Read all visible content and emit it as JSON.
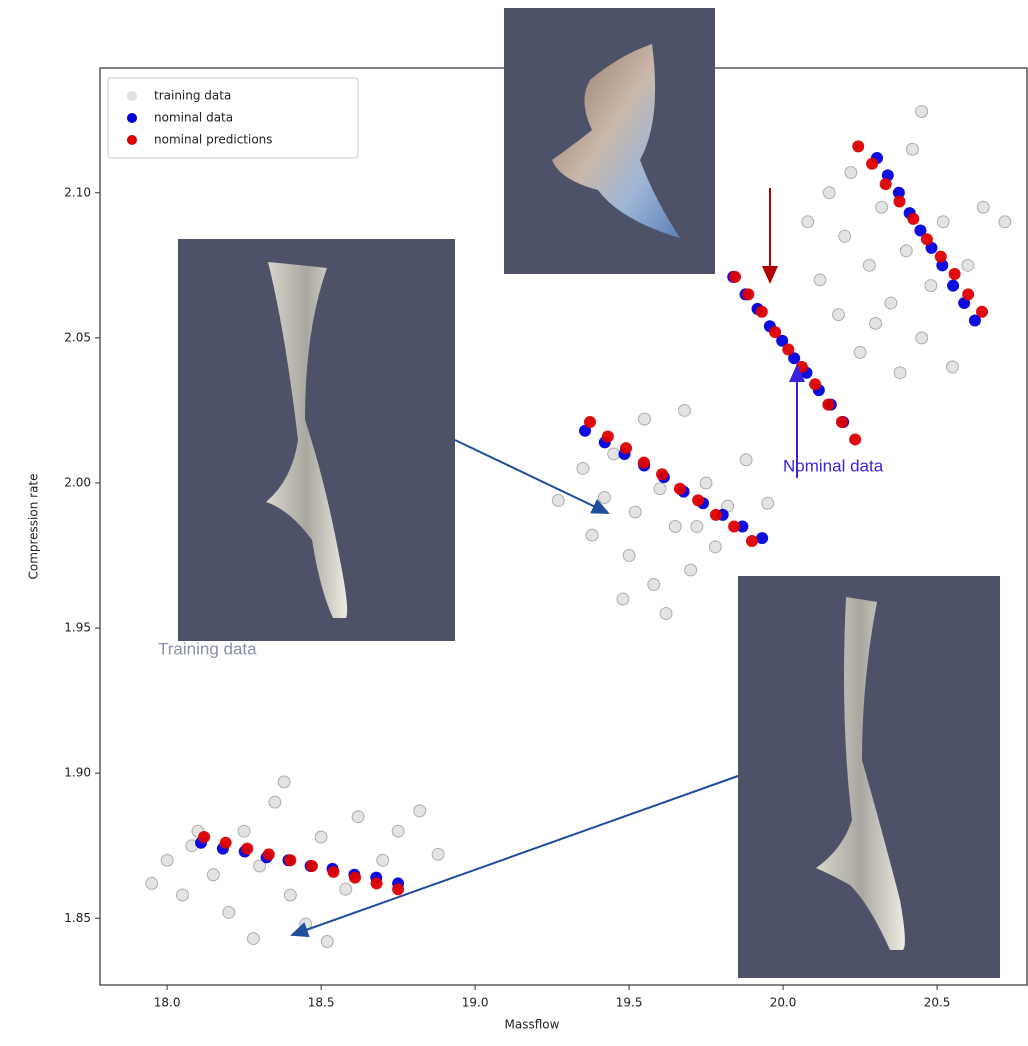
{
  "chart_data": {
    "type": "scatter",
    "xlabel": "Massflow",
    "ylabel": "Compression rate",
    "xlim": [
      17.782,
      20.792
    ],
    "ylim": [
      1.827,
      2.143
    ],
    "xticks": [
      {
        "value": 18,
        "label": "18.0"
      },
      18.5,
      {
        "value": 19,
        "label": "19.0"
      },
      19.5,
      {
        "value": 20,
        "label": "20.0"
      },
      20.5
    ],
    "yticks": [
      {
        "value": 2.1,
        "label": "2.10"
      },
      2.05,
      {
        "value": 2,
        "label": "2.00"
      },
      1.95,
      {
        "value": 1.9,
        "label": "1.90"
      },
      1.85
    ],
    "grid": false,
    "legend": "upper left",
    "series": [
      {
        "name": "training data",
        "color": "#808080",
        "x": [
          17.95,
          18.0,
          18.05,
          18.08,
          18.15,
          18.2,
          18.25,
          18.28,
          18.3,
          18.35,
          18.4,
          18.45,
          18.5,
          18.52,
          18.58,
          18.62,
          18.7,
          18.75,
          18.82,
          18.88,
          18.1,
          18.38,
          19.27,
          19.35,
          19.38,
          19.42,
          19.45,
          19.5,
          19.52,
          19.55,
          19.58,
          19.6,
          19.62,
          19.65,
          19.68,
          19.7,
          19.75,
          19.78,
          19.82,
          19.88,
          19.95,
          19.48,
          19.72,
          20.08,
          20.12,
          20.15,
          20.18,
          20.2,
          20.22,
          20.25,
          20.28,
          20.32,
          20.35,
          20.38,
          20.4,
          20.42,
          20.45,
          20.48,
          20.52,
          20.55,
          20.6,
          20.65,
          20.72,
          20.45,
          20.3
        ],
        "y": [
          1.862,
          1.87,
          1.858,
          1.875,
          1.865,
          1.852,
          1.88,
          1.843,
          1.868,
          1.89,
          1.858,
          1.848,
          1.878,
          1.842,
          1.86,
          1.885,
          1.87,
          1.88,
          1.887,
          1.872,
          1.88,
          1.897,
          1.994,
          2.005,
          1.982,
          1.995,
          2.01,
          1.975,
          1.99,
          2.022,
          1.965,
          1.998,
          1.955,
          1.985,
          2.025,
          1.97,
          2.0,
          1.978,
          1.992,
          2.008,
          1.993,
          1.96,
          1.985,
          2.09,
          2.07,
          2.1,
          2.058,
          2.085,
          2.107,
          2.045,
          2.075,
          2.095,
          2.062,
          2.038,
          2.08,
          2.115,
          2.05,
          2.068,
          2.09,
          2.04,
          2.075,
          2.095,
          2.09,
          2.128,
          2.055
        ]
      },
      {
        "name": "nominal data",
        "color": "#0000dd",
        "x": [
          18.11,
          18.181,
          18.252,
          18.323,
          18.394,
          18.466,
          18.537,
          18.608,
          18.679,
          18.75,
          19.357,
          19.421,
          19.485,
          19.549,
          19.613,
          19.677,
          19.74,
          19.804,
          19.868,
          19.932,
          19.838,
          19.878,
          19.917,
          19.957,
          19.997,
          20.036,
          20.076,
          20.116,
          20.155,
          20.195,
          20.305,
          20.34,
          20.376,
          20.411,
          20.446,
          20.482,
          20.517,
          20.552,
          20.588,
          20.623
        ],
        "y": [
          1.876,
          1.874,
          1.873,
          1.871,
          1.87,
          1.868,
          1.867,
          1.865,
          1.864,
          1.862,
          2.018,
          2.014,
          2.01,
          2.006,
          2.002,
          1.997,
          1.993,
          1.989,
          1.985,
          1.981,
          2.071,
          2.065,
          2.06,
          2.054,
          2.049,
          2.043,
          2.038,
          2.032,
          2.027,
          2.021,
          2.112,
          2.106,
          2.1,
          2.093,
          2.087,
          2.081,
          2.075,
          2.068,
          2.062,
          2.056
        ]
      },
      {
        "name": "nominal predictions",
        "color": "#dd0000",
        "x": [
          18.12,
          18.19,
          18.26,
          18.33,
          18.4,
          18.47,
          18.54,
          18.61,
          18.68,
          18.75,
          19.373,
          19.431,
          19.49,
          19.548,
          19.607,
          19.665,
          19.724,
          19.782,
          19.841,
          19.899,
          19.844,
          19.887,
          19.931,
          19.974,
          20.017,
          20.061,
          20.104,
          20.147,
          20.191,
          20.234,
          20.244,
          20.289,
          20.333,
          20.378,
          20.423,
          20.467,
          20.512,
          20.557,
          20.601,
          20.646
        ],
        "y": [
          1.878,
          1.876,
          1.874,
          1.872,
          1.87,
          1.868,
          1.866,
          1.864,
          1.862,
          1.86,
          2.021,
          2.016,
          2.012,
          2.007,
          2.003,
          1.998,
          1.994,
          1.989,
          1.985,
          1.98,
          2.071,
          2.065,
          2.059,
          2.052,
          2.046,
          2.04,
          2.034,
          2.027,
          2.021,
          2.015,
          2.116,
          2.11,
          2.103,
          2.097,
          2.091,
          2.084,
          2.078,
          2.072,
          2.065,
          2.059
        ]
      }
    ],
    "annotations": [
      "Nominal data",
      "Training data"
    ]
  }
}
